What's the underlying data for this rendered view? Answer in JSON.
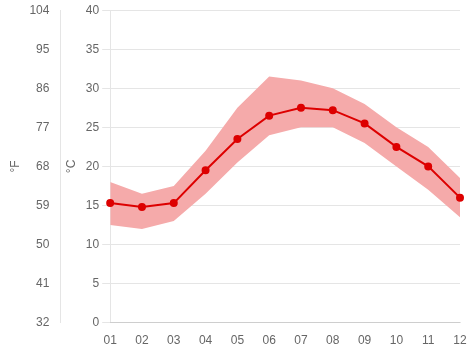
{
  "chart_data": {
    "type": "line",
    "categories": [
      "01",
      "02",
      "03",
      "04",
      "05",
      "06",
      "07",
      "08",
      "09",
      "10",
      "11",
      "12"
    ],
    "series": [
      {
        "type": "line",
        "color": "#dd0000",
        "marker": "circle",
        "values": [
          15.3,
          14.8,
          15.3,
          19.5,
          23.5,
          26.5,
          27.5,
          27.2,
          25.5,
          22.5,
          20.0,
          16.0
        ]
      }
    ],
    "band": {
      "lower": [
        12.5,
        12.0,
        13.0,
        16.5,
        20.5,
        24.0,
        25.0,
        25.0,
        23.0,
        20.0,
        17.0,
        13.5
      ],
      "upper": [
        18.0,
        16.5,
        17.5,
        22.0,
        27.5,
        31.5,
        31.0,
        30.0,
        28.0,
        25.0,
        22.5,
        18.5
      ],
      "color": "#f5aaaa"
    },
    "ylabel": "°C",
    "ylim": [
      0,
      40
    ],
    "yticks": [
      0,
      5,
      10,
      15,
      20,
      25,
      30,
      35,
      40
    ],
    "y2label": "°F",
    "y2lim": [
      32,
      104
    ],
    "y2ticks": [
      32,
      41,
      50,
      59,
      68,
      77,
      86,
      95,
      104
    ],
    "grid": "y"
  }
}
